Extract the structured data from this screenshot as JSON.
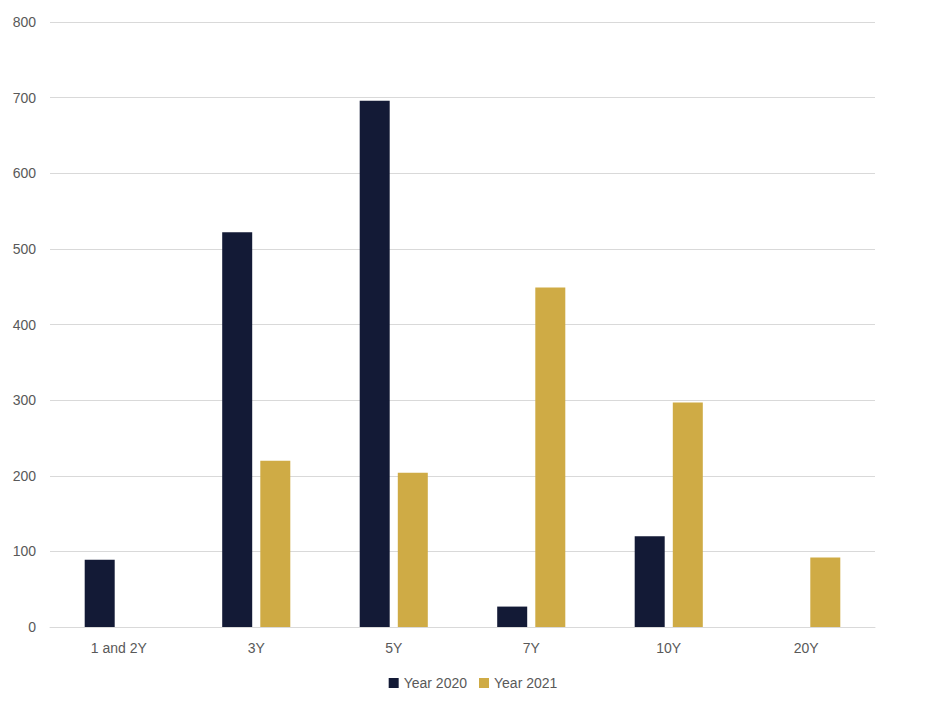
{
  "chart_data": {
    "type": "bar",
    "categories": [
      "1 and 2Y",
      "3Y",
      "5Y",
      "7Y",
      "10Y",
      "20Y"
    ],
    "series": [
      {
        "name": "Year 2020",
        "color": "#131a36",
        "values": [
          89,
          522,
          696,
          27,
          120,
          null
        ]
      },
      {
        "name": "Year 2021",
        "color": "#cfab45",
        "values": [
          null,
          220,
          204,
          449,
          297,
          92
        ]
      }
    ],
    "ylim": [
      0,
      800
    ],
    "yticks": [
      0,
      100,
      200,
      300,
      400,
      500,
      600,
      700,
      800
    ],
    "grid": true,
    "legend": "bottom"
  }
}
